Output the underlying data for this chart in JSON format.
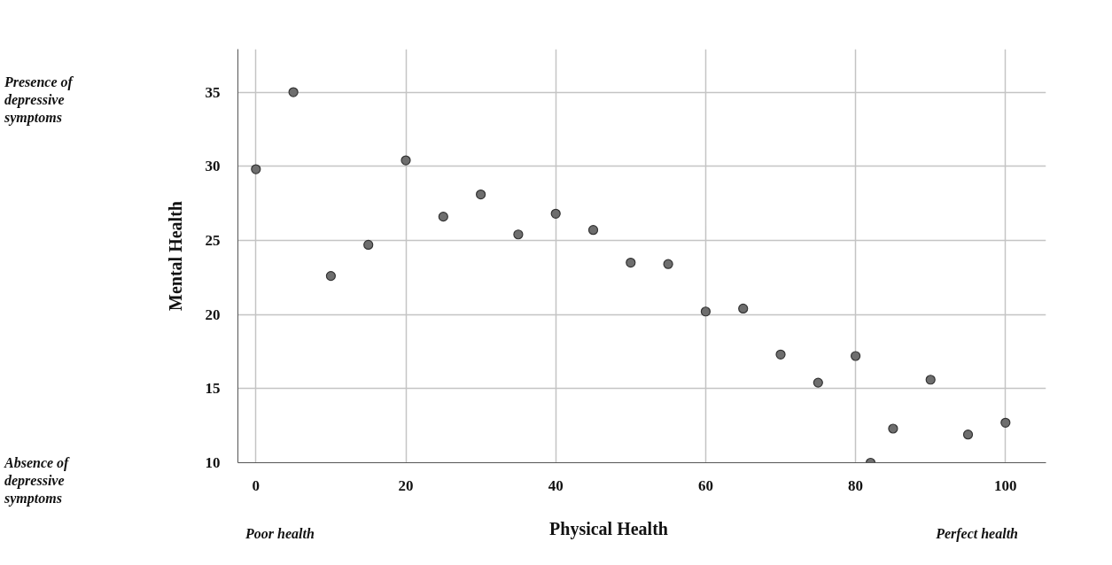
{
  "chart_data": {
    "type": "scatter",
    "xlabel": "Physical Health",
    "ylabel": "Mental Health",
    "annotations": [
      "Presence of depressive symptoms",
      "Absence of depressive symptoms",
      "Poor health",
      "Perfect health"
    ],
    "x": [
      0,
      5,
      10,
      15,
      20,
      25,
      30,
      35,
      40,
      45,
      50,
      55,
      60,
      65,
      70,
      75,
      80,
      82,
      85,
      90,
      95,
      100
    ],
    "series": [
      {
        "color": "#6e6e6e",
        "values": [
          29.8,
          35.0,
          22.6,
          24.7,
          30.4,
          26.6,
          28.1,
          25.4,
          26.8,
          25.7,
          23.5,
          23.4,
          20.2,
          20.4,
          17.3,
          15.4,
          17.2,
          10.0,
          12.3,
          15.6,
          11.9,
          12.7
        ]
      }
    ],
    "xlim": [
      -2.4,
      105.4
    ],
    "ylim": [
      10,
      37.9
    ],
    "xticks": [
      0,
      20,
      40,
      60,
      80,
      100
    ],
    "yticks": [
      10,
      15,
      20,
      25,
      30,
      35
    ],
    "grid": true,
    "marker": "circle"
  }
}
